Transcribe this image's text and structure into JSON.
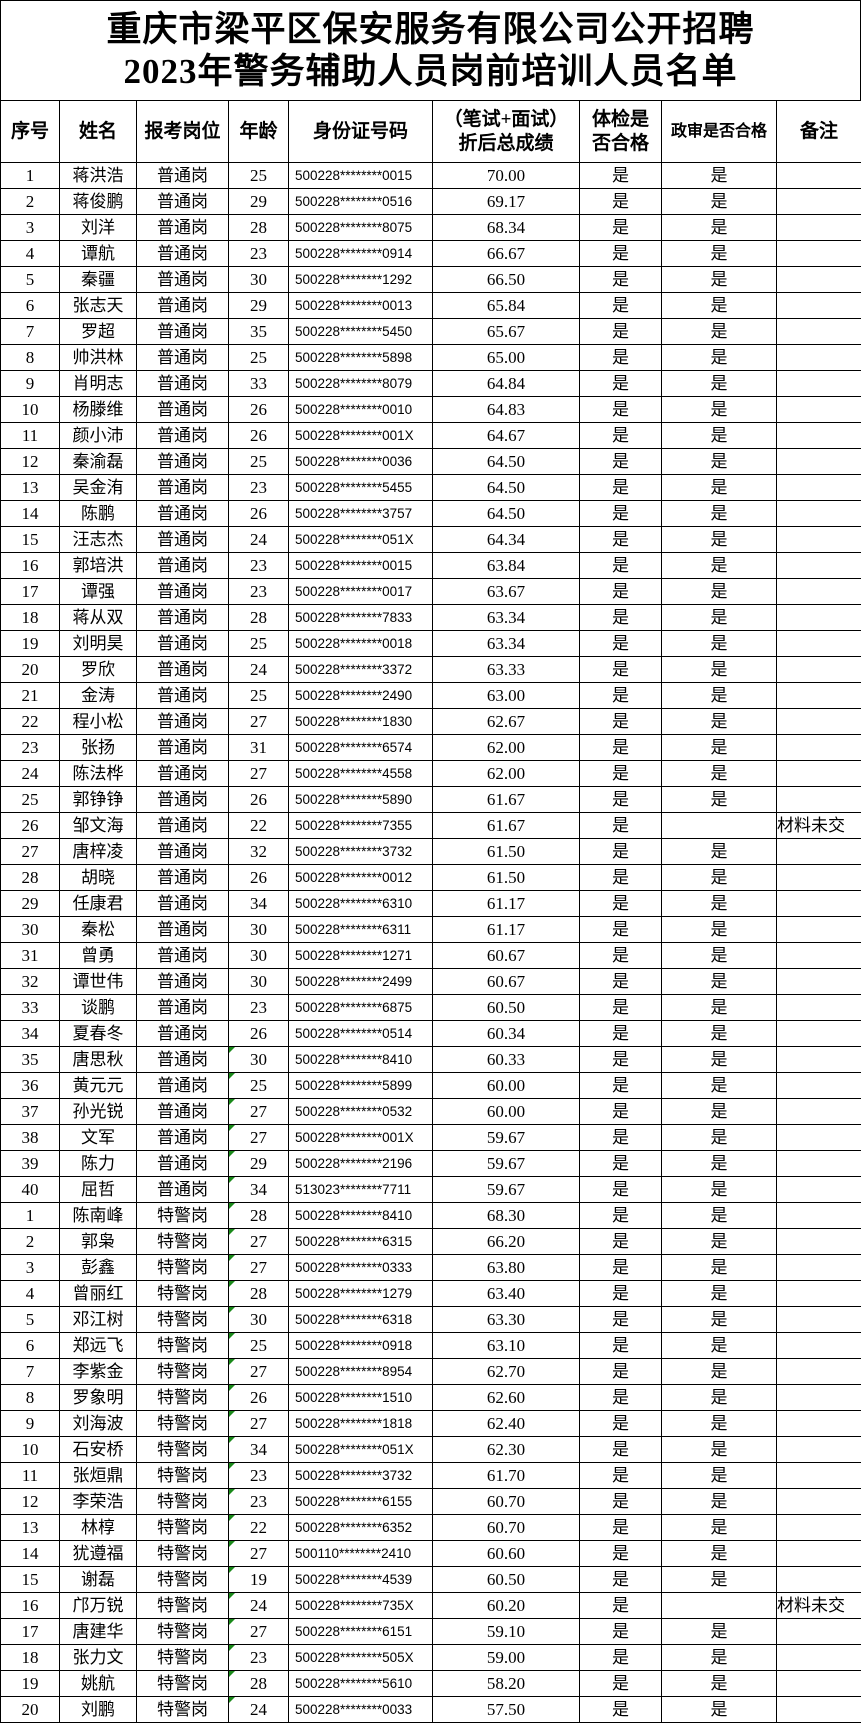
{
  "title": {
    "line1": "重庆市梁平区保安服务有限公司公开招聘",
    "line2": "2023年警务辅助人员岗前培训人员名单"
  },
  "headers": {
    "seq": "序号",
    "name": "姓名",
    "post": "报考岗位",
    "age": "年龄",
    "id": "身份证号码",
    "score_line1": "（笔试+面试）",
    "score_line2": "折后总成绩",
    "health_line1": "体检是",
    "health_line2": "否合格",
    "political": "政审是否合格",
    "note": "备注"
  },
  "colors": {
    "marker": "#1a8a1a"
  },
  "rows": [
    [
      "1",
      "蒋洪浩",
      "普通岗",
      "25",
      "500228********0015",
      "70.00",
      "是",
      "是",
      "",
      false
    ],
    [
      "2",
      "蒋俊鹏",
      "普通岗",
      "29",
      "500228********0516",
      "69.17",
      "是",
      "是",
      "",
      false
    ],
    [
      "3",
      "刘洋",
      "普通岗",
      "28",
      "500228********8075",
      "68.34",
      "是",
      "是",
      "",
      false
    ],
    [
      "4",
      "谭航",
      "普通岗",
      "23",
      "500228********0914",
      "66.67",
      "是",
      "是",
      "",
      false
    ],
    [
      "5",
      "秦疆",
      "普通岗",
      "30",
      "500228********1292",
      "66.50",
      "是",
      "是",
      "",
      false
    ],
    [
      "6",
      "张志天",
      "普通岗",
      "29",
      "500228********0013",
      "65.84",
      "是",
      "是",
      "",
      false
    ],
    [
      "7",
      "罗超",
      "普通岗",
      "35",
      "500228********5450",
      "65.67",
      "是",
      "是",
      "",
      false
    ],
    [
      "8",
      "帅洪林",
      "普通岗",
      "25",
      "500228********5898",
      "65.00",
      "是",
      "是",
      "",
      false
    ],
    [
      "9",
      "肖明志",
      "普通岗",
      "33",
      "500228********8079",
      "64.84",
      "是",
      "是",
      "",
      false
    ],
    [
      "10",
      "杨滕维",
      "普通岗",
      "26",
      "500228********0010",
      "64.83",
      "是",
      "是",
      "",
      false
    ],
    [
      "11",
      "颜小沛",
      "普通岗",
      "26",
      "500228********001X",
      "64.67",
      "是",
      "是",
      "",
      false
    ],
    [
      "12",
      "秦渝磊",
      "普通岗",
      "25",
      "500228********0036",
      "64.50",
      "是",
      "是",
      "",
      false
    ],
    [
      "13",
      "吴金洧",
      "普通岗",
      "23",
      "500228********5455",
      "64.50",
      "是",
      "是",
      "",
      false
    ],
    [
      "14",
      "陈鹏",
      "普通岗",
      "26",
      "500228********3757",
      "64.50",
      "是",
      "是",
      "",
      false
    ],
    [
      "15",
      "汪志杰",
      "普通岗",
      "24",
      "500228********051X",
      "64.34",
      "是",
      "是",
      "",
      false
    ],
    [
      "16",
      "郭培洪",
      "普通岗",
      "23",
      "500228********0015",
      "63.84",
      "是",
      "是",
      "",
      false
    ],
    [
      "17",
      "谭强",
      "普通岗",
      "23",
      "500228********0017",
      "63.67",
      "是",
      "是",
      "",
      false
    ],
    [
      "18",
      "蒋从双",
      "普通岗",
      "28",
      "500228********7833",
      "63.34",
      "是",
      "是",
      "",
      false
    ],
    [
      "19",
      "刘明昊",
      "普通岗",
      "25",
      "500228********0018",
      "63.34",
      "是",
      "是",
      "",
      false
    ],
    [
      "20",
      "罗欣",
      "普通岗",
      "24",
      "500228********3372",
      "63.33",
      "是",
      "是",
      "",
      false
    ],
    [
      "21",
      "金涛",
      "普通岗",
      "25",
      "500228********2490",
      "63.00",
      "是",
      "是",
      "",
      false
    ],
    [
      "22",
      "程小松",
      "普通岗",
      "27",
      "500228********1830",
      "62.67",
      "是",
      "是",
      "",
      false
    ],
    [
      "23",
      "张扬",
      "普通岗",
      "31",
      "500228********6574",
      "62.00",
      "是",
      "是",
      "",
      false
    ],
    [
      "24",
      "陈法桦",
      "普通岗",
      "27",
      "500228********4558",
      "62.00",
      "是",
      "是",
      "",
      false
    ],
    [
      "25",
      "郭铮铮",
      "普通岗",
      "26",
      "500228********5890",
      "61.67",
      "是",
      "是",
      "",
      false
    ],
    [
      "26",
      "邹文海",
      "普通岗",
      "22",
      "500228********7355",
      "61.67",
      "是",
      "",
      "材料未交",
      false
    ],
    [
      "27",
      "唐梓凌",
      "普通岗",
      "32",
      "500228********3732",
      "61.50",
      "是",
      "是",
      "",
      false
    ],
    [
      "28",
      "胡晓",
      "普通岗",
      "26",
      "500228********0012",
      "61.50",
      "是",
      "是",
      "",
      false
    ],
    [
      "29",
      "任康君",
      "普通岗",
      "34",
      "500228********6310",
      "61.17",
      "是",
      "是",
      "",
      false
    ],
    [
      "30",
      "秦松",
      "普通岗",
      "30",
      "500228********6311",
      "61.17",
      "是",
      "是",
      "",
      false
    ],
    [
      "31",
      "曾勇",
      "普通岗",
      "30",
      "500228********1271",
      "60.67",
      "是",
      "是",
      "",
      false
    ],
    [
      "32",
      "谭世伟",
      "普通岗",
      "30",
      "500228********2499",
      "60.67",
      "是",
      "是",
      "",
      false
    ],
    [
      "33",
      "谈鹏",
      "普通岗",
      "23",
      "500228********6875",
      "60.50",
      "是",
      "是",
      "",
      false
    ],
    [
      "34",
      "夏春冬",
      "普通岗",
      "26",
      "500228********0514",
      "60.34",
      "是",
      "是",
      "",
      false
    ],
    [
      "35",
      "唐思秋",
      "普通岗",
      "30",
      "500228********8410",
      "60.33",
      "是",
      "是",
      "",
      true
    ],
    [
      "36",
      "黄元元",
      "普通岗",
      "25",
      "500228********5899",
      "60.00",
      "是",
      "是",
      "",
      true
    ],
    [
      "37",
      "孙光锐",
      "普通岗",
      "27",
      "500228********0532",
      "60.00",
      "是",
      "是",
      "",
      true
    ],
    [
      "38",
      "文军",
      "普通岗",
      "27",
      "500228********001X",
      "59.67",
      "是",
      "是",
      "",
      true
    ],
    [
      "39",
      "陈力",
      "普通岗",
      "29",
      "500228********2196",
      "59.67",
      "是",
      "是",
      "",
      true
    ],
    [
      "40",
      "屈哲",
      "普通岗",
      "34",
      "513023********7711",
      "59.67",
      "是",
      "是",
      "",
      true
    ],
    [
      "1",
      "陈南峰",
      "特警岗",
      "28",
      "500228********8410",
      "68.30",
      "是",
      "是",
      "",
      true
    ],
    [
      "2",
      "郭枭",
      "特警岗",
      "27",
      "500228********6315",
      "66.20",
      "是",
      "是",
      "",
      true
    ],
    [
      "3",
      "彭鑫",
      "特警岗",
      "27",
      "500228********0333",
      "63.80",
      "是",
      "是",
      "",
      true
    ],
    [
      "4",
      "曾丽红",
      "特警岗",
      "28",
      "500228********1279",
      "63.40",
      "是",
      "是",
      "",
      true
    ],
    [
      "5",
      "邓江树",
      "特警岗",
      "30",
      "500228********6318",
      "63.30",
      "是",
      "是",
      "",
      true
    ],
    [
      "6",
      "郑远飞",
      "特警岗",
      "25",
      "500228********0918",
      "63.10",
      "是",
      "是",
      "",
      true
    ],
    [
      "7",
      "李紫金",
      "特警岗",
      "27",
      "500228********8954",
      "62.70",
      "是",
      "是",
      "",
      true
    ],
    [
      "8",
      "罗象明",
      "特警岗",
      "26",
      "500228********1510",
      "62.60",
      "是",
      "是",
      "",
      true
    ],
    [
      "9",
      "刘海波",
      "特警岗",
      "27",
      "500228********1818",
      "62.40",
      "是",
      "是",
      "",
      true
    ],
    [
      "10",
      "石安桥",
      "特警岗",
      "34",
      "500228********051X",
      "62.30",
      "是",
      "是",
      "",
      true
    ],
    [
      "11",
      "张烜鼎",
      "特警岗",
      "23",
      "500228********3732",
      "61.70",
      "是",
      "是",
      "",
      true
    ],
    [
      "12",
      "李荣浩",
      "特警岗",
      "23",
      "500228********6155",
      "60.70",
      "是",
      "是",
      "",
      true
    ],
    [
      "13",
      "林椁",
      "特警岗",
      "22",
      "500228********6352",
      "60.70",
      "是",
      "是",
      "",
      true
    ],
    [
      "14",
      "犹遵福",
      "特警岗",
      "27",
      "500110********2410",
      "60.60",
      "是",
      "是",
      "",
      true
    ],
    [
      "15",
      "谢磊",
      "特警岗",
      "19",
      "500228********4539",
      "60.50",
      "是",
      "是",
      "",
      true
    ],
    [
      "16",
      "邝万锐",
      "特警岗",
      "24",
      "500228********735X",
      "60.20",
      "是",
      "",
      "材料未交",
      true
    ],
    [
      "17",
      "唐建华",
      "特警岗",
      "27",
      "500228********6151",
      "59.10",
      "是",
      "是",
      "",
      true
    ],
    [
      "18",
      "张力文",
      "特警岗",
      "23",
      "500228********505X",
      "59.00",
      "是",
      "是",
      "",
      true
    ],
    [
      "19",
      "姚航",
      "特警岗",
      "28",
      "500228********5610",
      "58.20",
      "是",
      "是",
      "",
      true
    ],
    [
      "20",
      "刘鹏",
      "特警岗",
      "24",
      "500228********0033",
      "57.50",
      "是",
      "是",
      "",
      true
    ]
  ]
}
